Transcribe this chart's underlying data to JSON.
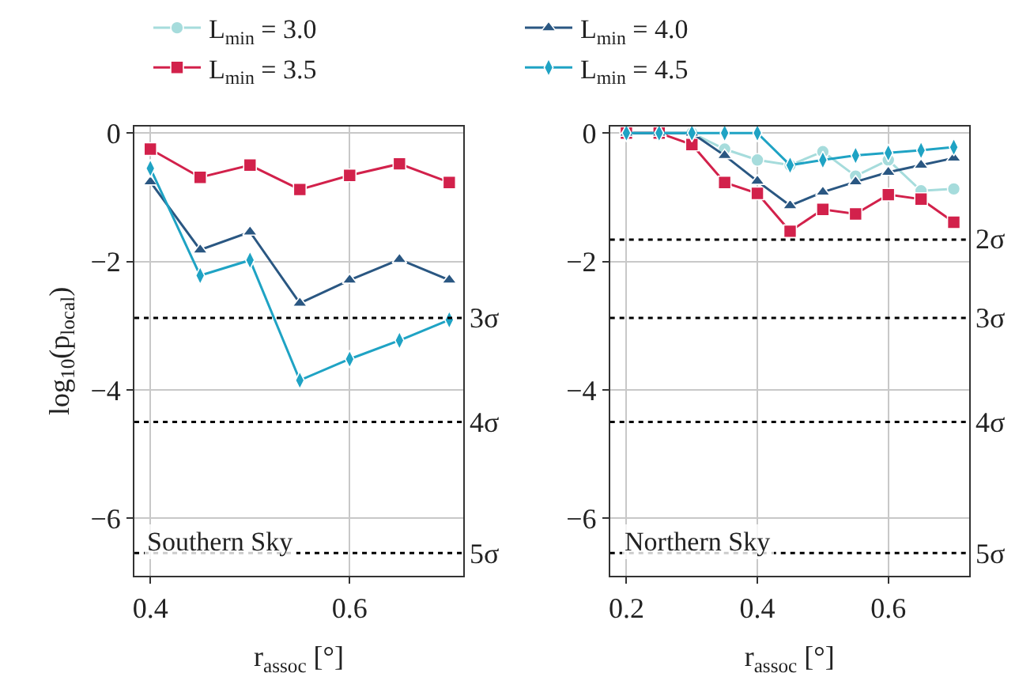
{
  "chart_data": [
    {
      "type": "line",
      "x": [
        0.4,
        0.45,
        0.5,
        0.55,
        0.6,
        0.65,
        0.7
      ],
      "xlim": [
        0.384,
        0.714
      ],
      "xticks": [
        0.4,
        0.6
      ],
      "ylim": [
        -6.89,
        0.1
      ],
      "yticks": [
        {
          "value": 0,
          "label": "0"
        },
        {
          "value": -2,
          "label": "−2"
        },
        {
          "value": -4,
          "label": "−4"
        },
        {
          "value": -6,
          "label": "−6"
        }
      ],
      "xlabel": "r$_{assoc}$ [°]",
      "ylabel": "log$_{10}$(p$_{local}$)",
      "grid": true,
      "legend": "top",
      "line_style": "solid",
      "series": [
        {
          "name": "L$_{min}$ = 3.5",
          "color": "#d2214b",
          "marker": "square",
          "values": [
            -0.25,
            -0.69,
            -0.5,
            -0.88,
            -0.66,
            -0.48,
            -0.77
          ]
        },
        {
          "name": "L$_{min}$ = 4.0",
          "color": "#2a5782",
          "marker": "triangle",
          "values": [
            -0.76,
            -1.82,
            -1.54,
            -2.65,
            -2.29,
            -1.97,
            -2.29
          ]
        },
        {
          "name": "L$_{min}$ = 4.5",
          "color": "#1fa3c4",
          "marker": "diamond",
          "values": [
            -0.55,
            -2.22,
            -1.98,
            -3.85,
            -3.52,
            -3.23,
            -2.91
          ]
        }
      ],
      "ref_lines": [
        {
          "axis": "y",
          "value": -2.88,
          "label": "3σ",
          "color": "#000000",
          "line_style": "dotted"
        },
        {
          "axis": "y",
          "value": -4.5,
          "label": "4σ",
          "color": "#000000",
          "line_style": "dotted"
        },
        {
          "axis": "y",
          "value": -6.54,
          "label": "5σ",
          "color": "#000000",
          "line_style": "dotted"
        }
      ],
      "annotations": [
        "Southern Sky"
      ]
    },
    {
      "type": "line",
      "x": [
        0.2,
        0.25,
        0.3,
        0.35,
        0.4,
        0.45,
        0.5,
        0.55,
        0.6,
        0.65,
        0.7
      ],
      "xlim": [
        0.175,
        0.723
      ],
      "xticks": [
        0.2,
        0.4,
        0.6
      ],
      "ylim": [
        -6.89,
        0.1
      ],
      "yticks": [
        {
          "value": 0,
          "label": "0"
        },
        {
          "value": -2,
          "label": "−2"
        },
        {
          "value": -4,
          "label": "−4"
        },
        {
          "value": -6,
          "label": "−6"
        }
      ],
      "xlabel": "r$_{assoc}$ [°]",
      "grid": true,
      "legend": "top",
      "line_style": "solid",
      "series": [
        {
          "name": "L$_{min}$ = 3.0",
          "color": "#a6dcdc",
          "marker": "circle",
          "values": [
            0,
            0,
            0,
            -0.25,
            -0.42,
            -0.5,
            -0.29,
            -0.67,
            -0.42,
            -0.9,
            -0.87
          ]
        },
        {
          "name": "L$_{min}$ = 3.5",
          "color": "#d2214b",
          "marker": "square",
          "values": [
            0,
            0,
            -0.18,
            -0.77,
            -0.94,
            -1.53,
            -1.19,
            -1.26,
            -0.96,
            -1.03,
            -1.39
          ]
        },
        {
          "name": "L$_{min}$ = 4.0",
          "color": "#2a5782",
          "marker": "triangle",
          "values": [
            0,
            0,
            0,
            -0.35,
            -0.75,
            -1.13,
            -0.92,
            -0.76,
            -0.61,
            -0.5,
            -0.39
          ]
        },
        {
          "name": "L$_{min}$ = 4.5",
          "color": "#1fa3c4",
          "marker": "diamond",
          "values": [
            0,
            0,
            0,
            0,
            0,
            -0.5,
            -0.42,
            -0.35,
            -0.31,
            -0.27,
            -0.22
          ]
        }
      ],
      "ref_lines": [
        {
          "axis": "y",
          "value": -1.66,
          "label": "2σ",
          "color": "#000000",
          "line_style": "dotted"
        },
        {
          "axis": "y",
          "value": -2.88,
          "label": "3σ",
          "color": "#000000",
          "line_style": "dotted"
        },
        {
          "axis": "y",
          "value": -4.5,
          "label": "4σ",
          "color": "#000000",
          "line_style": "dotted"
        },
        {
          "axis": "y",
          "value": -6.54,
          "label": "5σ",
          "color": "#000000",
          "line_style": "dotted"
        }
      ],
      "annotations": [
        "Northern Sky"
      ]
    }
  ]
}
